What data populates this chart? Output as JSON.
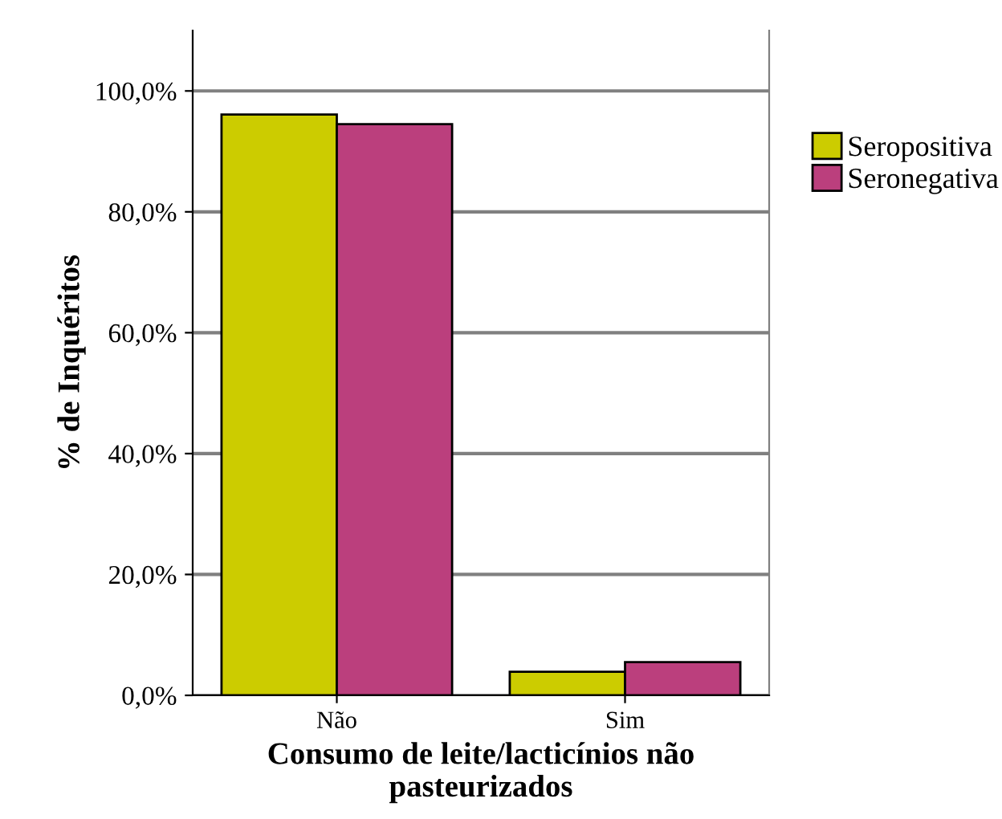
{
  "chart_data": {
    "type": "bar",
    "xlabel": "Consumo de leite/lacticínios não\npasteurizados",
    "ylabel": "% de Inquéritos",
    "categories": [
      "Não",
      "Sim"
    ],
    "series": [
      {
        "name": "Seropositiva",
        "color": "#cccc00",
        "values": [
          96.1,
          3.9
        ]
      },
      {
        "name": "Seronegativa",
        "color": "#bb3f7d",
        "values": [
          94.5,
          5.5
        ]
      }
    ],
    "ylim": [
      0,
      110
    ],
    "yticks": [
      {
        "value": 0,
        "label": "0,0%"
      },
      {
        "value": 20,
        "label": "20,0%"
      },
      {
        "value": 40,
        "label": "40,0%"
      },
      {
        "value": 60,
        "label": "60,0%"
      },
      {
        "value": 80,
        "label": "80,0%"
      },
      {
        "value": 100,
        "label": "100,0%"
      }
    ],
    "grid": "y",
    "legend": "right"
  }
}
